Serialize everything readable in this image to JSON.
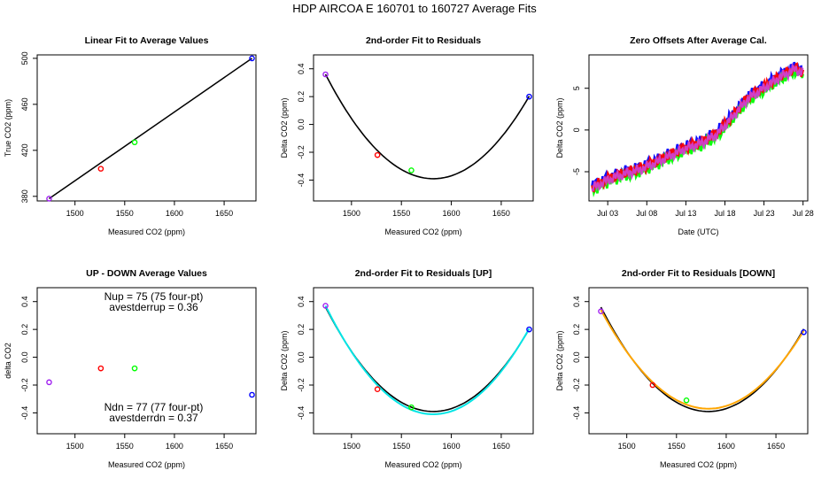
{
  "main_title": "HDP   AIRCOA E   160701 to 160727   Average Fits",
  "colors": {
    "purple": "#a020f0",
    "red": "#ff0000",
    "green": "#00ff00",
    "blue": "#0000ff",
    "black": "#000000",
    "cyan": "#00e5e5",
    "orange": "#ffa500",
    "magenta": "#d040d0"
  },
  "chart_data": [
    {
      "type": "scatter",
      "title": "Linear Fit to Average Values",
      "xlabel": "Measured CO2 (ppm)",
      "ylabel": "True CO2 (ppm)",
      "xlim": [
        1462,
        1682
      ],
      "ylim": [
        376,
        503
      ],
      "xticks": [
        1500,
        1550,
        1600,
        1650
      ],
      "yticks": [
        380,
        420,
        460,
        500
      ],
      "points": [
        {
          "x": 1474,
          "y": 378,
          "color": "purple"
        },
        {
          "x": 1526,
          "y": 404,
          "color": "red"
        },
        {
          "x": 1560,
          "y": 427,
          "color": "green"
        },
        {
          "x": 1678,
          "y": 500,
          "color": "blue"
        }
      ],
      "fit_line": {
        "x": [
          1474,
          1678
        ],
        "y": [
          378,
          500
        ],
        "color": "black"
      }
    },
    {
      "type": "scatter",
      "title": "2nd-order Fit to Residuals",
      "xlabel": "Measured CO2 (ppm)",
      "ylabel": "Delta CO2 (ppm)",
      "xlim": [
        1462,
        1682
      ],
      "ylim": [
        -0.55,
        0.5
      ],
      "xticks": [
        1500,
        1550,
        1600,
        1650
      ],
      "yticks": [
        0.4,
        0.2,
        0.0,
        -0.2,
        -0.4
      ],
      "points": [
        {
          "x": 1474,
          "y": 0.36,
          "color": "purple"
        },
        {
          "x": 1526,
          "y": -0.22,
          "color": "red"
        },
        {
          "x": 1560,
          "y": -0.33,
          "color": "green"
        },
        {
          "x": 1678,
          "y": 0.2,
          "color": "blue"
        }
      ],
      "curves": [
        {
          "name": "fit",
          "color": "black",
          "vertex_x": 1582,
          "vertex_y": -0.39,
          "x0": 1474,
          "y0": 0.36,
          "x_range": [
            1474,
            1678
          ]
        }
      ]
    },
    {
      "type": "line",
      "title": "Zero Offsets After Average Cal.",
      "xlabel": "Date (UTC)",
      "ylabel": "Delta CO2 (ppm)",
      "xlim": [
        0.6,
        28.6
      ],
      "ylim": [
        -8.5,
        9
      ],
      "xticks": [
        3,
        8,
        13,
        18,
        23,
        28
      ],
      "xticklabels": [
        "Jul 03",
        "Jul 08",
        "Jul 13",
        "Jul 18",
        "Jul 23",
        "Jul 28"
      ],
      "yticks": [
        5,
        0,
        -5
      ],
      "series_colors": [
        "blue",
        "green",
        "red",
        "magenta"
      ],
      "trend": {
        "x": [
          1,
          3,
          5,
          7,
          9,
          11,
          13,
          15,
          17,
          19,
          21,
          23,
          25,
          27,
          28
        ],
        "y": [
          -7,
          -6,
          -5.3,
          -4.8,
          -4,
          -3.1,
          -2.2,
          -1.6,
          -0.5,
          1.6,
          3.8,
          5,
          6.3,
          7.3,
          6.8
        ]
      }
    },
    {
      "type": "scatter",
      "title": "UP - DOWN Average Values",
      "xlabel": "Measured CO2 (ppm)",
      "ylabel": "delta CO2",
      "xlim": [
        1462,
        1682
      ],
      "ylim": [
        -0.55,
        0.5
      ],
      "xticks": [
        1500,
        1550,
        1600,
        1650
      ],
      "yticks": [
        0.4,
        0.2,
        0.0,
        -0.2,
        -0.4
      ],
      "points": [
        {
          "x": 1474,
          "y": -0.18,
          "color": "purple"
        },
        {
          "x": 1526,
          "y": -0.08,
          "color": "red"
        },
        {
          "x": 1560,
          "y": -0.08,
          "color": "green"
        },
        {
          "x": 1678,
          "y": -0.27,
          "color": "blue"
        }
      ],
      "annotations": {
        "nup": "Nup = 75 (75 four-pt)",
        "avestderrup": "avestderrup =  0.36",
        "ndn": "Ndn = 77 (77 four-pt)",
        "avestderrdn": "avestderrdn =  0.37"
      }
    },
    {
      "type": "scatter",
      "title": "2nd-order Fit to Residuals [UP]",
      "xlabel": "Measured CO2 (ppm)",
      "ylabel": "Delta CO2 (ppm)",
      "xlim": [
        1462,
        1682
      ],
      "ylim": [
        -0.55,
        0.5
      ],
      "xticks": [
        1500,
        1550,
        1600,
        1650
      ],
      "yticks": [
        0.4,
        0.2,
        0.0,
        -0.2,
        -0.4
      ],
      "points": [
        {
          "x": 1474,
          "y": 0.37,
          "color": "purple"
        },
        {
          "x": 1526,
          "y": -0.23,
          "color": "red"
        },
        {
          "x": 1560,
          "y": -0.36,
          "color": "green"
        },
        {
          "x": 1678,
          "y": 0.2,
          "color": "blue"
        }
      ],
      "curves": [
        {
          "name": "fit",
          "color": "black",
          "vertex_x": 1582,
          "vertex_y": -0.39,
          "x0": 1474,
          "y0": 0.36,
          "x_range": [
            1474,
            1678
          ]
        },
        {
          "name": "up-fit",
          "color": "cyan",
          "vertex_x": 1582,
          "vertex_y": -0.41,
          "x0": 1474,
          "y0": 0.37,
          "x_range": [
            1474,
            1678
          ]
        }
      ]
    },
    {
      "type": "scatter",
      "title": "2nd-order Fit to Residuals [DOWN]",
      "xlabel": "Measured CO2 (ppm)",
      "ylabel": "Delta CO2 (ppm)",
      "xlim": [
        1462,
        1682
      ],
      "ylim": [
        -0.55,
        0.5
      ],
      "xticks": [
        1500,
        1550,
        1600,
        1650
      ],
      "yticks": [
        0.4,
        0.2,
        0.0,
        -0.2,
        -0.4
      ],
      "points": [
        {
          "x": 1474,
          "y": 0.33,
          "color": "purple"
        },
        {
          "x": 1526,
          "y": -0.2,
          "color": "red"
        },
        {
          "x": 1560,
          "y": -0.31,
          "color": "green"
        },
        {
          "x": 1678,
          "y": 0.18,
          "color": "blue"
        }
      ],
      "curves": [
        {
          "name": "fit",
          "color": "black",
          "vertex_x": 1582,
          "vertex_y": -0.39,
          "x0": 1474,
          "y0": 0.36,
          "x_range": [
            1474,
            1678
          ]
        },
        {
          "name": "down-fit",
          "color": "orange",
          "vertex_x": 1582,
          "vertex_y": -0.37,
          "x0": 1474,
          "y0": 0.34,
          "x_range": [
            1474,
            1678
          ]
        }
      ]
    }
  ]
}
